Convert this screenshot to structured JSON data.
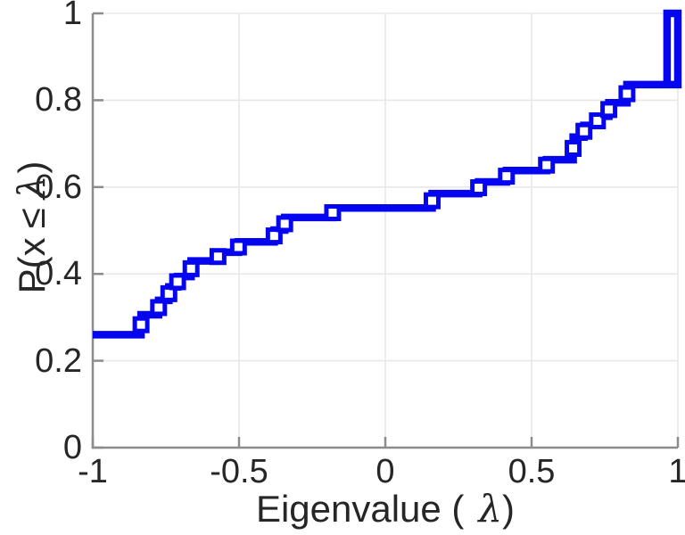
{
  "figure": {
    "xlabel_pre": "Eigenvalue (",
    "xlabel_lambda": "λ",
    "xlabel_post": ")",
    "ylabel_pre": "P(x",
    "ylabel_leq": "≤",
    "ylabel_lambda": "λ",
    "ylabel_post": ")"
  },
  "chart_data": {
    "type": "step",
    "description": "Empirical cumulative distribution function of eigenvalues, drawn as a thick blue staircase with hollow square markers at each jump",
    "title": "",
    "xlabel": "Eigenvalue ( λ)",
    "ylabel": "P(x ≤ λ)",
    "xlim": [
      -1,
      1
    ],
    "ylim": [
      0,
      1
    ],
    "grid": true,
    "legend": "none",
    "xticks": [
      -1,
      -0.5,
      0,
      0.5,
      1
    ],
    "xtick_labels": [
      "-1",
      "-0.5",
      "0",
      "0.5",
      "1"
    ],
    "yticks": [
      0,
      0.2,
      0.4,
      0.6,
      0.8,
      1
    ],
    "ytick_labels": [
      "0",
      "0.2",
      "0.4",
      "0.6",
      "0.8",
      "1"
    ],
    "line_color": "#0505f0",
    "marker": "square",
    "marker_fill": "#ffffff",
    "axis_color": "#8c8c8c",
    "grid_color": "#e8e8e8",
    "text_color": "#262626",
    "cdf_start": {
      "x": -1.0,
      "y": 0.26
    },
    "steps": [
      [
        -0.835,
        0.306
      ],
      [
        -0.775,
        0.339
      ],
      [
        -0.74,
        0.37
      ],
      [
        -0.71,
        0.394
      ],
      [
        -0.664,
        0.43
      ],
      [
        -0.572,
        0.45
      ],
      [
        -0.502,
        0.474
      ],
      [
        -0.38,
        0.501
      ],
      [
        -0.344,
        0.53
      ],
      [
        -0.18,
        0.552
      ],
      [
        0.16,
        0.585
      ],
      [
        0.319,
        0.612
      ],
      [
        0.414,
        0.638
      ],
      [
        0.551,
        0.663
      ],
      [
        0.642,
        0.715
      ],
      [
        0.679,
        0.742
      ],
      [
        0.725,
        0.763
      ],
      [
        0.764,
        0.794
      ],
      [
        0.826,
        0.836
      ]
    ],
    "final_segment": {
      "base_y": 0.836,
      "flat_to_x": 1.0,
      "spike_x": 0.963,
      "top_y": 1.0,
      "right_x": 1.0
    }
  }
}
